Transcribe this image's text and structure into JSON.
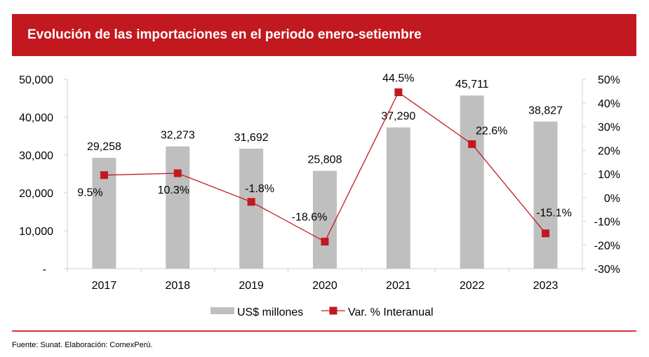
{
  "header": {
    "title": "Evolución de las importaciones en el periodo enero-setiembre"
  },
  "footer": {
    "source": "Fuente: Sunat. Elaboración: ComexPerú."
  },
  "colors": {
    "title_bar": "#c1191f",
    "bars": "#bfbfbf",
    "line": "#c1191f"
  },
  "chart_data": {
    "type": "bar+line",
    "categories": [
      "2017",
      "2018",
      "2019",
      "2020",
      "2021",
      "2022",
      "2023"
    ],
    "series": [
      {
        "name": "US$ millones",
        "type": "bar",
        "axis": "left",
        "values": [
          29258,
          32273,
          31692,
          25808,
          37290,
          45711,
          38827
        ],
        "labels": [
          "29,258",
          "32,273",
          "31,692",
          "25,808",
          "37,290",
          "45,711",
          "38,827"
        ]
      },
      {
        "name": "Var. % Interanual",
        "type": "line",
        "axis": "right",
        "values": [
          9.5,
          10.3,
          -1.8,
          -18.6,
          44.5,
          22.6,
          -15.1
        ],
        "labels": [
          "9.5%",
          "10.3%",
          "-1.8%",
          "-18.6%",
          "44.5%",
          "22.6%",
          "-15.1%"
        ]
      }
    ],
    "left_axis": {
      "ylim": [
        0,
        50000
      ],
      "ticks": [
        "-",
        "10,000",
        "20,000",
        "30,000",
        "40,000",
        "50,000"
      ]
    },
    "right_axis": {
      "ylim": [
        -30,
        50
      ],
      "ticks": [
        "-30%",
        "-20%",
        "-10%",
        "0%",
        "10%",
        "20%",
        "30%",
        "40%",
        "50%"
      ]
    },
    "grid": false,
    "legend": "bottom"
  }
}
